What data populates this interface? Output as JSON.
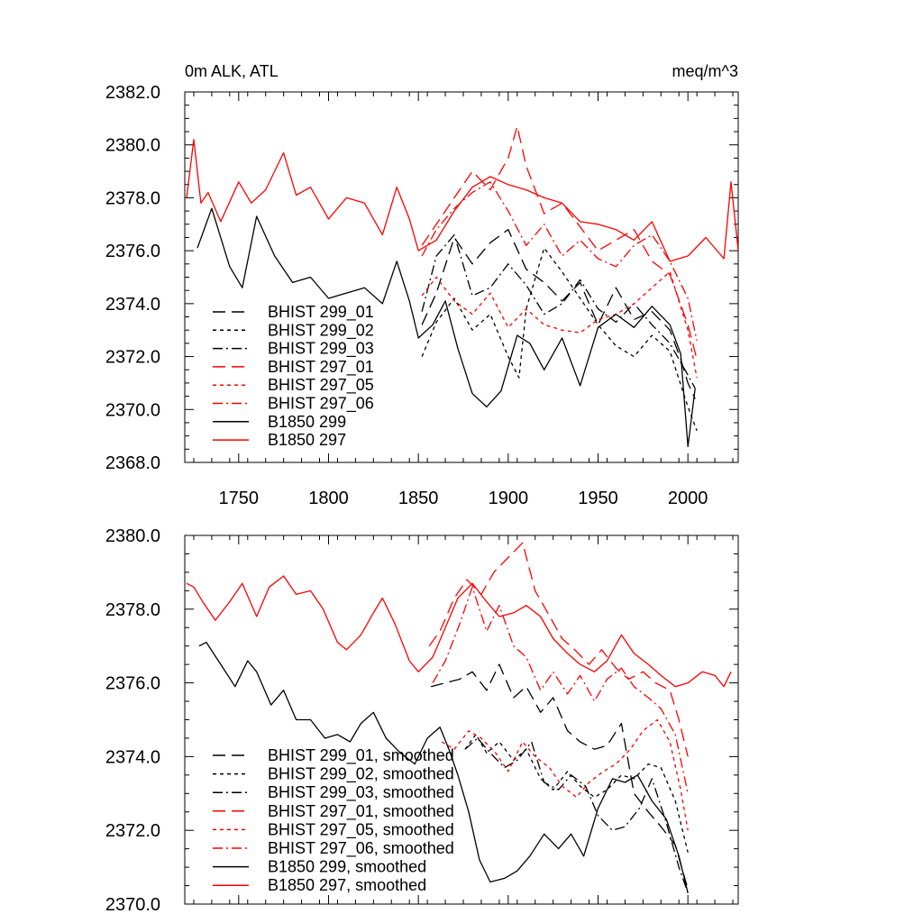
{
  "colors": {
    "black": "#000000",
    "red": "#ff0000"
  },
  "chart_data": [
    {
      "type": "line",
      "title": "0m ALK, ATL",
      "units": "meq/m^3",
      "xlim": [
        1720,
        2028
      ],
      "ylim": [
        2368.0,
        2382.0
      ],
      "x_ticks": [
        1750,
        1800,
        1850,
        1900,
        1950,
        2000
      ],
      "y_ticks": [
        "2368.0",
        "2370.0",
        "2372.0",
        "2374.0",
        "2376.0",
        "2378.0",
        "2380.0",
        "2382.0"
      ],
      "legend_position": "lower-left",
      "series": [
        {
          "name": "BHIST 299_01",
          "color": "black",
          "dash": "long-dash",
          "x": [
            1852,
            1860,
            1870,
            1880,
            1890,
            1900,
            1910,
            1920,
            1930,
            1940,
            1950,
            1960,
            1970,
            1980,
            1990,
            1996,
            2000,
            2004
          ],
          "y": [
            2373.2,
            2374.4,
            2376.5,
            2375.5,
            2376.3,
            2376.8,
            2375.3,
            2374.8,
            2374.1,
            2374.8,
            2373.2,
            2374.6,
            2373.4,
            2373.7,
            2373.0,
            2371.9,
            2371.0,
            2370.4
          ]
        },
        {
          "name": "BHIST 299_02",
          "color": "black",
          "dash": "short-dash",
          "x": [
            1852,
            1860,
            1870,
            1880,
            1890,
            1900,
            1906,
            1910,
            1920,
            1930,
            1940,
            1950,
            1960,
            1970,
            1980,
            1990,
            2000,
            2005
          ],
          "y": [
            2372.0,
            2373.3,
            2374.2,
            2373.0,
            2373.6,
            2372.0,
            2371.2,
            2373.8,
            2376.1,
            2375.2,
            2374.2,
            2373.2,
            2372.4,
            2372.0,
            2372.8,
            2372.2,
            2370.1,
            2369.2
          ]
        },
        {
          "name": "BHIST 299_03",
          "color": "black",
          "dash": "dash-dot",
          "x": [
            1852,
            1860,
            1870,
            1880,
            1890,
            1900,
            1910,
            1920,
            1930,
            1940,
            1950,
            1960,
            1970,
            1980,
            1990,
            2000,
            2004
          ],
          "y": [
            2373.7,
            2375.8,
            2376.6,
            2374.3,
            2374.6,
            2375.5,
            2374.7,
            2373.6,
            2374.0,
            2374.9,
            2373.8,
            2373.3,
            2374.0,
            2373.2,
            2372.5,
            2371.3,
            2370.8
          ]
        },
        {
          "name": "BHIST 297_01",
          "color": "red",
          "dash": "long-dash",
          "x": [
            1852,
            1860,
            1870,
            1880,
            1890,
            1900,
            1905,
            1910,
            1920,
            1930,
            1940,
            1950,
            1960,
            1970,
            1980,
            1990,
            2000,
            2005
          ],
          "y": [
            2376.2,
            2377.0,
            2378.0,
            2379.0,
            2378.3,
            2379.5,
            2380.7,
            2379.2,
            2377.4,
            2377.8,
            2376.9,
            2376.0,
            2376.4,
            2376.8,
            2375.6,
            2375.1,
            2373.2,
            2371.9
          ]
        },
        {
          "name": "BHIST 297_05",
          "color": "red",
          "dash": "short-dash",
          "x": [
            1852,
            1860,
            1870,
            1880,
            1890,
            1900,
            1910,
            1920,
            1930,
            1940,
            1950,
            1960,
            1970,
            1980,
            1990,
            2000,
            2005
          ],
          "y": [
            2374.3,
            2375.0,
            2374.1,
            2373.6,
            2374.4,
            2373.1,
            2373.8,
            2373.2,
            2373.0,
            2372.9,
            2373.4,
            2373.6,
            2374.0,
            2374.6,
            2375.2,
            2373.0,
            2371.2
          ]
        },
        {
          "name": "BHIST 297_06",
          "color": "red",
          "dash": "dash-dot",
          "x": [
            1852,
            1860,
            1870,
            1880,
            1890,
            1900,
            1910,
            1920,
            1930,
            1940,
            1950,
            1960,
            1970,
            1980,
            1990,
            2000,
            2005
          ],
          "y": [
            2375.8,
            2376.8,
            2377.6,
            2378.2,
            2378.6,
            2377.5,
            2376.2,
            2377.0,
            2375.8,
            2376.4,
            2375.7,
            2375.4,
            2376.2,
            2376.6,
            2375.6,
            2374.2,
            2372.6
          ]
        },
        {
          "name": "B1850 299",
          "color": "black",
          "dash": "solid",
          "x": [
            1727,
            1735,
            1745,
            1752,
            1760,
            1770,
            1780,
            1790,
            1800,
            1810,
            1820,
            1830,
            1838,
            1845,
            1850,
            1858,
            1865,
            1872,
            1880,
            1888,
            1896,
            1905,
            1912,
            1920,
            1930,
            1940,
            1950,
            1960,
            1970,
            1980,
            1990,
            1996,
            2000,
            2004
          ],
          "y": [
            2376.1,
            2377.6,
            2375.4,
            2374.6,
            2377.3,
            2375.8,
            2374.8,
            2375.0,
            2374.2,
            2374.4,
            2374.6,
            2374.0,
            2375.6,
            2374.1,
            2372.7,
            2373.2,
            2374.1,
            2372.3,
            2370.6,
            2370.1,
            2370.7,
            2372.8,
            2372.5,
            2371.5,
            2372.7,
            2370.9,
            2373.1,
            2373.6,
            2373.1,
            2373.9,
            2373.2,
            2372.1,
            2368.6,
            2370.8
          ]
        },
        {
          "name": "B1850 297",
          "color": "red",
          "dash": "solid",
          "x": [
            1721,
            1725,
            1729,
            1733,
            1740,
            1750,
            1757,
            1765,
            1775,
            1782,
            1790,
            1800,
            1810,
            1820,
            1830,
            1838,
            1845,
            1850,
            1860,
            1870,
            1880,
            1890,
            1900,
            1910,
            1920,
            1930,
            1940,
            1950,
            1960,
            1970,
            1980,
            1990,
            2000,
            2010,
            2020,
            2024,
            2028
          ],
          "y": [
            2378.0,
            2380.2,
            2377.8,
            2378.2,
            2377.1,
            2378.6,
            2377.8,
            2378.3,
            2379.7,
            2378.1,
            2378.4,
            2377.2,
            2378.0,
            2377.8,
            2376.6,
            2378.4,
            2377.2,
            2376.0,
            2376.4,
            2377.5,
            2378.4,
            2378.8,
            2378.5,
            2378.3,
            2378.0,
            2377.8,
            2377.1,
            2377.0,
            2376.8,
            2376.4,
            2377.1,
            2375.6,
            2375.8,
            2376.5,
            2375.7,
            2378.6,
            2376.0
          ]
        }
      ]
    },
    {
      "type": "line",
      "title": "",
      "xlim": [
        1720,
        2028
      ],
      "ylim": [
        2370.0,
        2380.0
      ],
      "y_ticks": [
        "2370.0",
        "2372.0",
        "2374.0",
        "2376.0",
        "2378.0",
        "2380.0"
      ],
      "legend_position": "lower-left",
      "series": [
        {
          "name": "BHIST 299_01, smoothed",
          "color": "black",
          "dash": "long-dash",
          "x": [
            1857,
            1865,
            1873,
            1880,
            1888,
            1895,
            1903,
            1910,
            1918,
            1925,
            1933,
            1940,
            1948,
            1955,
            1963,
            1970,
            1978,
            1985,
            1993,
            2000
          ],
          "y": [
            2375.9,
            2376.0,
            2376.1,
            2376.3,
            2375.8,
            2376.5,
            2375.6,
            2375.9,
            2375.2,
            2375.6,
            2374.7,
            2374.4,
            2374.2,
            2374.3,
            2374.9,
            2373.0,
            2372.5,
            2372.1,
            2371.6,
            2370.4
          ]
        },
        {
          "name": "BHIST 299_02, smoothed",
          "color": "black",
          "dash": "short-dash",
          "x": [
            1876,
            1882,
            1888,
            1895,
            1903,
            1910,
            1918,
            1925,
            1933,
            1940,
            1948,
            1955,
            1963,
            1970,
            1978,
            1985,
            1993,
            2000
          ],
          "y": [
            2374.2,
            2374.6,
            2374.1,
            2374.4,
            2373.9,
            2374.2,
            2373.4,
            2373.1,
            2373.6,
            2373.2,
            2372.9,
            2373.1,
            2373.5,
            2373.4,
            2373.8,
            2373.7,
            2372.8,
            2371.4
          ]
        },
        {
          "name": "BHIST 299_03, smoothed",
          "color": "black",
          "dash": "dash-dot",
          "x": [
            1876,
            1883,
            1890,
            1898,
            1905,
            1913,
            1920,
            1928,
            1935,
            1943,
            1950,
            1958,
            1965,
            1973,
            1980,
            1988,
            1995,
            2000
          ],
          "y": [
            2374.2,
            2374.5,
            2374.1,
            2373.7,
            2373.9,
            2374.4,
            2373.3,
            2373.1,
            2373.5,
            2373.2,
            2372.4,
            2372.0,
            2372.1,
            2372.6,
            2373.4,
            2372.2,
            2371.0,
            2370.3
          ]
        },
        {
          "name": "BHIST 297_01, smoothed",
          "color": "red",
          "dash": "long-dash",
          "x": [
            1856,
            1862,
            1870,
            1877,
            1885,
            1892,
            1900,
            1908,
            1915,
            1922,
            1930,
            1937,
            1945,
            1952,
            1960,
            1967,
            1975,
            1982,
            1990,
            1995,
            2000
          ],
          "y": [
            2377.0,
            2377.4,
            2378.3,
            2378.8,
            2378.4,
            2379.0,
            2379.4,
            2379.8,
            2378.5,
            2377.9,
            2377.2,
            2376.9,
            2376.5,
            2376.9,
            2376.4,
            2376.1,
            2376.3,
            2376.0,
            2375.8,
            2375.0,
            2374.0
          ]
        },
        {
          "name": "BHIST 297_05, smoothed",
          "color": "red",
          "dash": "short-dash",
          "x": [
            1863,
            1870,
            1878,
            1885,
            1893,
            1900,
            1908,
            1915,
            1923,
            1930,
            1938,
            1945,
            1953,
            1960,
            1968,
            1975,
            1983,
            1990,
            1996,
            2000
          ],
          "y": [
            2374.4,
            2374.2,
            2374.7,
            2374.5,
            2374.1,
            2373.6,
            2374.4,
            2374.0,
            2373.7,
            2373.2,
            2372.9,
            2373.3,
            2373.6,
            2373.8,
            2374.2,
            2374.7,
            2375.0,
            2374.4,
            2373.1,
            2372.0
          ]
        },
        {
          "name": "BHIST 297_06, smoothed",
          "color": "red",
          "dash": "dash-dot",
          "x": [
            1858,
            1865,
            1873,
            1880,
            1888,
            1895,
            1903,
            1910,
            1918,
            1925,
            1933,
            1940,
            1948,
            1955,
            1963,
            1970,
            1978,
            1985,
            1993,
            2000
          ],
          "y": [
            2376.0,
            2376.6,
            2377.6,
            2378.6,
            2377.4,
            2378.1,
            2377.0,
            2376.7,
            2375.8,
            2376.3,
            2375.7,
            2376.2,
            2375.5,
            2376.1,
            2376.4,
            2375.9,
            2375.6,
            2375.3,
            2374.6,
            2373.0
          ]
        },
        {
          "name": "B1850 299, smoothed",
          "color": "black",
          "dash": "solid",
          "x": [
            1728,
            1732,
            1740,
            1748,
            1755,
            1760,
            1768,
            1775,
            1782,
            1790,
            1798,
            1805,
            1812,
            1818,
            1825,
            1832,
            1840,
            1848,
            1855,
            1862,
            1867,
            1872,
            1878,
            1884,
            1890,
            1898,
            1905,
            1912,
            1920,
            1928,
            1935,
            1942,
            1950,
            1958,
            1965,
            1972,
            1980,
            1988,
            1995,
            2000
          ],
          "y": [
            2377.0,
            2377.1,
            2376.5,
            2375.9,
            2376.6,
            2376.3,
            2375.4,
            2375.8,
            2375.0,
            2375.0,
            2374.5,
            2374.6,
            2374.4,
            2374.9,
            2375.2,
            2374.5,
            2374.1,
            2373.8,
            2374.5,
            2374.8,
            2374.2,
            2373.5,
            2372.5,
            2371.2,
            2370.6,
            2370.7,
            2370.9,
            2371.3,
            2371.9,
            2371.5,
            2371.9,
            2371.3,
            2372.6,
            2373.4,
            2373.3,
            2373.5,
            2372.8,
            2372.3,
            2371.3,
            2370.3
          ]
        },
        {
          "name": "B1850 297, smoothed",
          "color": "red",
          "dash": "solid",
          "x": [
            1721,
            1725,
            1730,
            1737,
            1745,
            1752,
            1760,
            1767,
            1775,
            1782,
            1790,
            1797,
            1805,
            1810,
            1818,
            1825,
            1830,
            1837,
            1845,
            1850,
            1858,
            1865,
            1872,
            1880,
            1888,
            1895,
            1903,
            1910,
            1918,
            1925,
            1933,
            1940,
            1948,
            1955,
            1963,
            1970,
            1978,
            1985,
            1993,
            2000,
            2008,
            2015,
            2020,
            2024
          ],
          "y": [
            2378.7,
            2378.6,
            2378.2,
            2377.7,
            2378.2,
            2378.7,
            2377.8,
            2378.6,
            2378.9,
            2378.4,
            2378.5,
            2378.0,
            2377.1,
            2376.9,
            2377.3,
            2377.9,
            2378.3,
            2377.6,
            2376.6,
            2376.3,
            2376.7,
            2377.5,
            2378.3,
            2378.7,
            2378.2,
            2377.8,
            2377.9,
            2378.1,
            2377.8,
            2377.2,
            2376.8,
            2376.5,
            2376.3,
            2376.6,
            2377.3,
            2376.8,
            2376.5,
            2376.2,
            2375.9,
            2376.0,
            2376.3,
            2376.2,
            2375.9,
            2376.3
          ]
        }
      ]
    }
  ]
}
